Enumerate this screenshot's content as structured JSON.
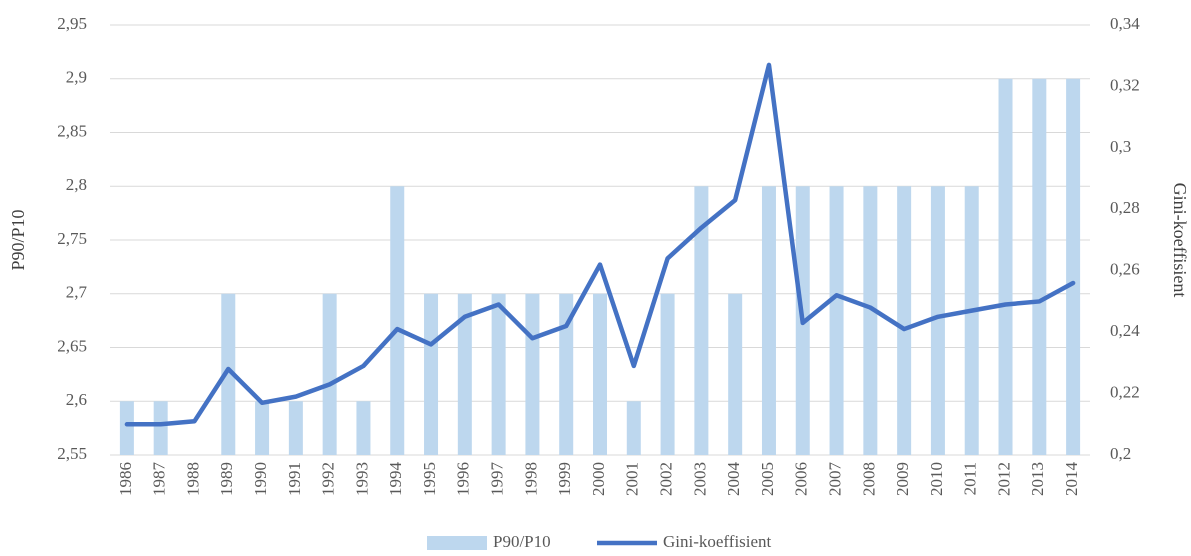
{
  "chart_data": {
    "type": "bar-line",
    "categories": [
      "1986",
      "1987",
      "1988",
      "1989",
      "1990",
      "1991",
      "1992",
      "1993",
      "1994",
      "1995",
      "1996",
      "1997",
      "1998",
      "1999",
      "2000",
      "2001",
      "2002",
      "2003",
      "2004",
      "2005",
      "2006",
      "2007",
      "2008",
      "2009",
      "2010",
      "2011",
      "2012",
      "2013",
      "2014"
    ],
    "series": [
      {
        "name": "P90/P10",
        "type": "bar",
        "color": "#bdd7ee",
        "values": [
          2.6,
          2.6,
          2.55,
          2.7,
          2.6,
          2.6,
          2.7,
          2.6,
          2.8,
          2.7,
          2.7,
          2.7,
          2.7,
          2.7,
          2.7,
          2.6,
          2.7,
          2.8,
          2.7,
          2.8,
          2.8,
          2.8,
          2.8,
          2.8,
          2.8,
          2.8,
          2.9,
          2.9,
          2.9
        ]
      },
      {
        "name": "Gini-koeffisient",
        "type": "line",
        "color": "#4472c4",
        "axis": "y2",
        "values": [
          0.21,
          0.21,
          0.211,
          0.228,
          0.217,
          0.219,
          0.223,
          0.229,
          0.241,
          0.236,
          0.245,
          0.249,
          0.238,
          0.242,
          0.262,
          0.229,
          0.264,
          0.274,
          0.283,
          0.327,
          0.243,
          0.252,
          0.248,
          0.241,
          0.245,
          0.247,
          0.249,
          0.25,
          0.256
        ]
      }
    ],
    "y_label": "P90/P10",
    "y2_label": "Gini-koeffisient",
    "ylim": [
      2.55,
      2.95
    ],
    "yticks": [
      {
        "value": 2.55,
        "label": "2,55"
      },
      {
        "value": 2.6,
        "label": "2,6"
      },
      {
        "value": 2.65,
        "label": "2,65"
      },
      {
        "value": 2.7,
        "label": "2,7"
      },
      {
        "value": 2.75,
        "label": "2,75"
      },
      {
        "value": 2.8,
        "label": "2,8"
      },
      {
        "value": 2.85,
        "label": "2,85"
      },
      {
        "value": 2.9,
        "label": "2,9"
      },
      {
        "value": 2.95,
        "label": "2,95"
      }
    ],
    "y2lim": [
      0.2,
      0.34
    ],
    "y2ticks": [
      {
        "value": 0.2,
        "label": "0,2"
      },
      {
        "value": 0.22,
        "label": "0,22"
      },
      {
        "value": 0.24,
        "label": "0,24"
      },
      {
        "value": 0.26,
        "label": "0,26"
      },
      {
        "value": 0.28,
        "label": "0,28"
      },
      {
        "value": 0.3,
        "label": "0,3"
      },
      {
        "value": 0.32,
        "label": "0,32"
      },
      {
        "value": 0.34,
        "label": "0,34"
      }
    ],
    "grid": true,
    "legend": "bottom"
  }
}
